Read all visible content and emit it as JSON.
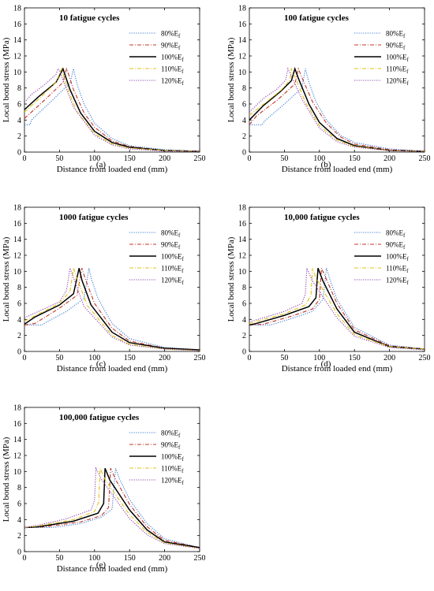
{
  "figure": {
    "legend_labels": [
      "80%E",
      "90%E",
      "100%E",
      "110%E",
      "120%E"
    ],
    "legend_subscript": "f",
    "series_styles": [
      {
        "color": "#3b7bd4",
        "dash": "dotted"
      },
      {
        "color": "#c0392b",
        "dash": "dashdot"
      },
      {
        "color": "#000000",
        "dash": "solid"
      },
      {
        "color": "#e0c21a",
        "dash": "dashdot"
      },
      {
        "color": "#8e44ad",
        "dash": "dotted"
      }
    ]
  },
  "chart_data": [
    {
      "type": "line",
      "panel_label": "(a)",
      "title": "10 fatigue cycles",
      "xlabel": "Distance from loaded end (mm)",
      "ylabel": "Local bond stress (MPa)",
      "xlim": [
        0,
        250
      ],
      "ylim": [
        0,
        18
      ],
      "xticks": [
        0,
        50,
        100,
        150,
        200,
        250
      ],
      "yticks": [
        0,
        2,
        4,
        6,
        8,
        10,
        12,
        14,
        16,
        18
      ],
      "legend": "upper-right",
      "series": [
        {
          "name": "80%Ef",
          "x": [
            0,
            8,
            10,
            40,
            65,
            70,
            75,
            85,
            100,
            125,
            150,
            200,
            250
          ],
          "y": [
            3.4,
            3.4,
            4.0,
            6.5,
            8.6,
            10.4,
            8.5,
            6.0,
            3.6,
            1.7,
            0.8,
            0.3,
            0.1
          ]
        },
        {
          "name": "90%Ef",
          "x": [
            0,
            30,
            55,
            60,
            63,
            70,
            85,
            100,
            125,
            150,
            200,
            250
          ],
          "y": [
            4.2,
            6.6,
            8.7,
            10.4,
            9.7,
            7.8,
            4.9,
            3.1,
            1.4,
            0.7,
            0.2,
            0.1
          ]
        },
        {
          "name": "100%Ef",
          "x": [
            0,
            20,
            45,
            55,
            58,
            65,
            80,
            100,
            125,
            150,
            200,
            250
          ],
          "y": [
            5.3,
            6.9,
            8.7,
            10.4,
            9.6,
            7.8,
            4.9,
            2.6,
            1.2,
            0.6,
            0.2,
            0.1
          ]
        },
        {
          "name": "110%Ef",
          "x": [
            0,
            25,
            45,
            53,
            55,
            62,
            75,
            100,
            125,
            150,
            200,
            250
          ],
          "y": [
            5.0,
            7.0,
            8.7,
            10.4,
            9.8,
            7.8,
            5.0,
            2.3,
            1.0,
            0.5,
            0.2,
            0.1
          ]
        },
        {
          "name": "120%Ef",
          "x": [
            0,
            10,
            30,
            45,
            48,
            50,
            55,
            70,
            100,
            125,
            150,
            200,
            250
          ],
          "y": [
            6.2,
            7.2,
            8.5,
            9.7,
            10.4,
            10.2,
            9.0,
            5.6,
            2.1,
            0.9,
            0.4,
            0.1,
            0.1
          ]
        }
      ]
    },
    {
      "type": "line",
      "panel_label": "(b)",
      "title": "100 fatigue cycles",
      "xlabel": "Distance from loaded end (mm)",
      "ylabel": "Local bond stress (MPa)",
      "xlim": [
        0,
        250
      ],
      "ylim": [
        0,
        18
      ],
      "xticks": [
        0,
        50,
        100,
        150,
        200,
        250
      ],
      "yticks": [
        0,
        2,
        4,
        6,
        8,
        10,
        12,
        14,
        16,
        18
      ],
      "legend": "upper-right",
      "series": [
        {
          "name": "80%Ef",
          "x": [
            0,
            18,
            22,
            50,
            75,
            80,
            85,
            95,
            110,
            130,
            150,
            200,
            250
          ],
          "y": [
            3.4,
            3.4,
            3.9,
            6.0,
            8.0,
            10.4,
            8.7,
            6.3,
            4.0,
            2.1,
            1.2,
            0.4,
            0.1
          ]
        },
        {
          "name": "90%Ef",
          "x": [
            0,
            10,
            40,
            65,
            70,
            75,
            90,
            110,
            130,
            150,
            200,
            250
          ],
          "y": [
            3.4,
            4.5,
            6.5,
            8.5,
            10.4,
            9.3,
            6.3,
            3.6,
            1.9,
            1.0,
            0.3,
            0.1
          ]
        },
        {
          "name": "100%Ef",
          "x": [
            0,
            20,
            45,
            60,
            65,
            70,
            85,
            100,
            125,
            150,
            200,
            250
          ],
          "y": [
            4.0,
            5.8,
            7.6,
            8.9,
            10.4,
            9.2,
            6.0,
            3.7,
            1.7,
            0.8,
            0.2,
            0.1
          ]
        },
        {
          "name": "110%Ef",
          "x": [
            0,
            25,
            45,
            58,
            60,
            66,
            80,
            100,
            125,
            150,
            200,
            250
          ],
          "y": [
            4.6,
            6.3,
            7.7,
            9.0,
            10.4,
            9.2,
            6.2,
            3.3,
            1.5,
            0.7,
            0.2,
            0.1
          ]
        },
        {
          "name": "120%Ef",
          "x": [
            0,
            20,
            40,
            52,
            55,
            60,
            75,
            100,
            125,
            150,
            200,
            250
          ],
          "y": [
            5.0,
            6.7,
            7.9,
            9.0,
            10.4,
            9.5,
            6.6,
            3.0,
            1.3,
            0.6,
            0.2,
            0.1
          ]
        }
      ]
    },
    {
      "type": "line",
      "panel_label": "(c)",
      "title": "1000 fatigue cycles",
      "xlabel": "Distance from loaded end (mm)",
      "ylabel": "Local bond stress (MPa)",
      "xlim": [
        0,
        250
      ],
      "ylim": [
        0,
        18
      ],
      "xticks": [
        0,
        50,
        100,
        150,
        200,
        250
      ],
      "yticks": [
        0,
        2,
        4,
        6,
        8,
        10,
        12,
        14,
        16,
        18
      ],
      "legend": "upper-right",
      "series": [
        {
          "name": "80%Ef",
          "x": [
            0,
            25,
            30,
            60,
            85,
            92,
            95,
            105,
            125,
            150,
            200,
            250
          ],
          "y": [
            3.3,
            3.3,
            3.6,
            5.0,
            6.6,
            10.4,
            9.2,
            6.6,
            3.5,
            1.6,
            0.5,
            0.2
          ]
        },
        {
          "name": "90%Ef",
          "x": [
            0,
            15,
            50,
            75,
            82,
            87,
            100,
            125,
            150,
            200,
            250
          ],
          "y": [
            3.3,
            3.5,
            5.4,
            7.0,
            10.4,
            9.0,
            6.0,
            2.9,
            1.3,
            0.4,
            0.2
          ]
        },
        {
          "name": "100%Ef",
          "x": [
            0,
            15,
            50,
            70,
            78,
            82,
            95,
            125,
            150,
            200,
            250
          ],
          "y": [
            3.4,
            4.3,
            5.8,
            7.2,
            10.4,
            8.9,
            5.8,
            2.4,
            1.1,
            0.4,
            0.2
          ]
        },
        {
          "name": "110%Ef",
          "x": [
            0,
            25,
            50,
            65,
            70,
            75,
            90,
            125,
            150,
            200,
            250
          ],
          "y": [
            3.8,
            4.9,
            6.0,
            7.5,
            10.4,
            9.1,
            5.7,
            2.0,
            0.9,
            0.3,
            0.1
          ]
        },
        {
          "name": "120%Ef",
          "x": [
            0,
            25,
            50,
            60,
            65,
            70,
            85,
            125,
            150,
            200,
            250
          ],
          "y": [
            4.2,
            5.2,
            6.2,
            7.6,
            10.4,
            9.2,
            5.6,
            1.8,
            0.8,
            0.3,
            0.1
          ]
        }
      ]
    },
    {
      "type": "line",
      "panel_label": "(d)",
      "title": "10,000 fatigue cycles",
      "xlabel": "Distance from loaded end (mm)",
      "ylabel": "Local bond stress (MPa)",
      "xlim": [
        0,
        250
      ],
      "ylim": [
        0,
        18
      ],
      "xticks": [
        0,
        50,
        100,
        150,
        200,
        250
      ],
      "yticks": [
        0,
        2,
        4,
        6,
        8,
        10,
        12,
        14,
        16,
        18
      ],
      "legend": "upper-right",
      "series": [
        {
          "name": "80%Ef",
          "x": [
            0,
            30,
            60,
            90,
            105,
            110,
            115,
            125,
            150,
            200,
            250
          ],
          "y": [
            3.3,
            3.3,
            4.1,
            5.0,
            6.5,
            10.4,
            9.0,
            6.5,
            3.0,
            0.8,
            0.3
          ]
        },
        {
          "name": "90%Ef",
          "x": [
            0,
            20,
            60,
            90,
            100,
            103,
            110,
            125,
            150,
            200,
            250
          ],
          "y": [
            3.3,
            3.4,
            4.4,
            5.3,
            6.5,
            10.4,
            9.0,
            6.0,
            2.7,
            0.7,
            0.3
          ]
        },
        {
          "name": "100%Ef",
          "x": [
            0,
            10,
            50,
            85,
            95,
            98,
            105,
            125,
            150,
            200,
            250
          ],
          "y": [
            3.3,
            3.5,
            4.5,
            5.6,
            6.7,
            10.4,
            8.8,
            5.3,
            2.4,
            0.6,
            0.3
          ]
        },
        {
          "name": "110%Ef",
          "x": [
            0,
            20,
            50,
            80,
            88,
            90,
            95,
            125,
            150,
            200,
            250
          ],
          "y": [
            3.5,
            4.0,
            4.7,
            5.8,
            7.0,
            10.4,
            9.2,
            4.7,
            2.1,
            0.6,
            0.3
          ]
        },
        {
          "name": "120%Ef",
          "x": [
            0,
            20,
            50,
            75,
            80,
            82,
            90,
            125,
            150,
            200,
            250
          ],
          "y": [
            3.7,
            4.2,
            5.0,
            6.0,
            7.2,
            10.4,
            8.8,
            4.2,
            1.9,
            0.5,
            0.2
          ]
        }
      ]
    },
    {
      "type": "line",
      "panel_label": "(e)",
      "title": "100,000 fatigue cycles",
      "xlabel": "Distance from loaded end (mm)",
      "ylabel": "Local bond stress (MPa)",
      "xlim": [
        0,
        250
      ],
      "ylim": [
        0,
        18
      ],
      "xticks": [
        0,
        50,
        100,
        150,
        200,
        250
      ],
      "yticks": [
        0,
        2,
        4,
        6,
        8,
        10,
        12,
        14,
        16,
        18
      ],
      "legend": "upper-right",
      "series": [
        {
          "name": "80%Ef",
          "x": [
            0,
            40,
            80,
            110,
            125,
            130,
            135,
            150,
            175,
            200,
            250
          ],
          "y": [
            3.0,
            3.0,
            3.5,
            4.3,
            5.3,
            10.4,
            9.2,
            6.5,
            3.5,
            1.6,
            0.5
          ]
        },
        {
          "name": "90%Ef",
          "x": [
            0,
            30,
            80,
            110,
            120,
            123,
            130,
            150,
            175,
            200,
            250
          ],
          "y": [
            3.0,
            3.1,
            3.7,
            4.5,
            5.5,
            10.4,
            9.0,
            5.9,
            3.1,
            1.4,
            0.5
          ]
        },
        {
          "name": "100%Ef",
          "x": [
            0,
            20,
            70,
            105,
            113,
            115,
            122,
            150,
            175,
            200,
            250
          ],
          "y": [
            3.0,
            3.1,
            3.8,
            4.8,
            6.0,
            10.4,
            8.9,
            5.2,
            2.7,
            1.2,
            0.5
          ]
        },
        {
          "name": "110%Ef",
          "x": [
            0,
            20,
            70,
            100,
            106,
            108,
            115,
            150,
            175,
            200,
            250
          ],
          "y": [
            3.0,
            3.2,
            4.0,
            5.0,
            6.2,
            10.4,
            9.0,
            4.6,
            2.4,
            1.1,
            0.4
          ]
        },
        {
          "name": "120%Ef",
          "x": [
            0,
            20,
            60,
            95,
            100,
            102,
            110,
            150,
            175,
            200,
            250
          ],
          "y": [
            3.0,
            3.3,
            4.1,
            5.2,
            6.4,
            10.4,
            9.0,
            4.1,
            2.1,
            1.0,
            0.4
          ]
        }
      ]
    }
  ]
}
